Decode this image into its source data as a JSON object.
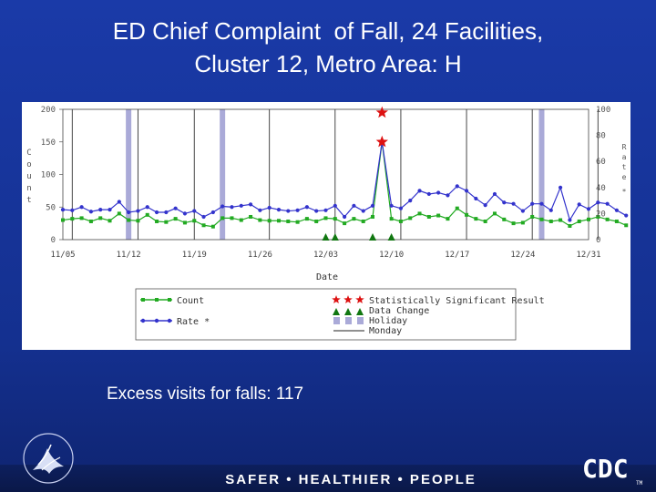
{
  "title_line1": "ED Chief Complaint  of Fall, 24 Facilities,",
  "title_line2": "Cluster 12, Metro Area: H",
  "excess_text": "Excess visits for falls: 117",
  "tagline": "SAFER • HEALTHIER • PEOPLE",
  "cdc_logo_text": "CDC",
  "cdc_tm": "TM",
  "chart_data": {
    "type": "line",
    "xlabel": "Date",
    "ylabel": "Count",
    "ylabel_right": "Rate",
    "ylim": [
      0,
      200
    ],
    "ylim_right": [
      0,
      100
    ],
    "yticks": [
      0,
      50,
      100,
      150,
      200
    ],
    "yticks_right_labels": [
      "0",
      "20",
      "40",
      "60",
      "80",
      "100"
    ],
    "x_tick_labels": [
      "11/05",
      "11/12",
      "11/19",
      "11/26",
      "12/03",
      "12/10",
      "12/17",
      "12/24",
      "12/31"
    ],
    "x_start_day": 0,
    "series": [
      {
        "name": "Count",
        "color": "#22aa22",
        "values": [
          30,
          32,
          33,
          28,
          33,
          29,
          40,
          30,
          29,
          38,
          28,
          27,
          32,
          26,
          29,
          22,
          20,
          33,
          33,
          30,
          35,
          30,
          29,
          29,
          28,
          27,
          32,
          28,
          33,
          32,
          25,
          32,
          28,
          35,
          150,
          32,
          28,
          33,
          40,
          35,
          37,
          32,
          48,
          38,
          32,
          28,
          40,
          31,
          25,
          26,
          35,
          31,
          28,
          30,
          21,
          28,
          31,
          35,
          31,
          28,
          22
        ]
      },
      {
        "name": "Rate *",
        "color": "#3333cc",
        "values": [
          46,
          45,
          50,
          43,
          46,
          46,
          58,
          42,
          44,
          50,
          42,
          42,
          48,
          40,
          44,
          35,
          42,
          51,
          50,
          52,
          54,
          45,
          49,
          46,
          44,
          45,
          50,
          44,
          45,
          52,
          35,
          52,
          44,
          52,
          150,
          52,
          48,
          60,
          75,
          70,
          72,
          68,
          82,
          75,
          63,
          53,
          70,
          57,
          55,
          44,
          55,
          55,
          45,
          80,
          30,
          54,
          47,
          57,
          55,
          45,
          37
        ]
      }
    ],
    "holiday_days": [
      7,
      17,
      51
    ],
    "monday_days": [
      1,
      8,
      14,
      22,
      29,
      36,
      43,
      50,
      57
    ],
    "signal_days": [
      34
    ],
    "signal_values": [
      195,
      150
    ],
    "data_change_days": [
      28,
      29,
      33,
      35
    ],
    "legend": {
      "count_label": "Count",
      "rate_label": "Rate *",
      "signal_label": "Statistically Significant Result",
      "data_change_label": "Data Change",
      "holiday_label": "Holiday",
      "monday_label": "Monday"
    }
  }
}
